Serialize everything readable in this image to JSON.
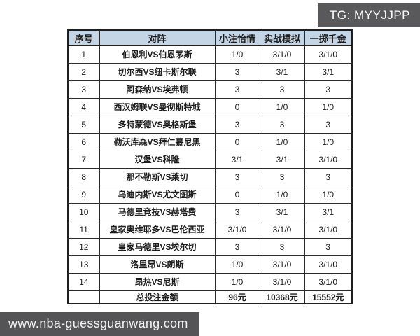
{
  "badge": {
    "text": "TG: MYYJJPP"
  },
  "watermark": {
    "text": "www.nba-guessguanwang.com"
  },
  "colors": {
    "header_bg": "#c4d6e6",
    "badge_bg": "#59595b",
    "watermark_bg": "#545456",
    "border": "#1f1f1f"
  },
  "table": {
    "headers": [
      "序号",
      "对阵",
      "小注怡情",
      "实战模拟",
      "一掷千金"
    ],
    "rows": [
      {
        "no": "1",
        "match": "伯恩利VS伯恩茅斯",
        "small": "1/0",
        "sim": "3/1/0",
        "big": "3/1/0"
      },
      {
        "no": "2",
        "match": "切尔西VS纽卡斯尔联",
        "small": "3",
        "sim": "3/1",
        "big": "3/1"
      },
      {
        "no": "3",
        "match": "阿森纳VS埃弗顿",
        "small": "3",
        "sim": "3",
        "big": "3"
      },
      {
        "no": "4",
        "match": "西汉姆联VS曼彻斯特城",
        "small": "0",
        "sim": "1/0",
        "big": "1/0"
      },
      {
        "no": "5",
        "match": "多特蒙德VS奥格斯堡",
        "small": "3",
        "sim": "3",
        "big": "3"
      },
      {
        "no": "6",
        "match": "勒沃库森VS拜仁慕尼黑",
        "small": "0",
        "sim": "1/0",
        "big": "1/0"
      },
      {
        "no": "7",
        "match": "汉堡VS科隆",
        "small": "3/1",
        "sim": "3/1",
        "big": "3/1/0"
      },
      {
        "no": "8",
        "match": "那不勒斯VS莱切",
        "small": "3",
        "sim": "3",
        "big": "3"
      },
      {
        "no": "9",
        "match": "乌迪内斯VS尤文图斯",
        "small": "0",
        "sim": "1/0",
        "big": "1/0"
      },
      {
        "no": "10",
        "match": "马德里竞技VS赫塔费",
        "small": "3",
        "sim": "3/1",
        "big": "3/1"
      },
      {
        "no": "11",
        "match": "皇家奥维耶多VS巴伦西亚",
        "small": "3/1/0",
        "sim": "3/1/0",
        "big": "3/1/0"
      },
      {
        "no": "12",
        "match": "皇家马德里VS埃尔切",
        "small": "3",
        "sim": "3",
        "big": "3"
      },
      {
        "no": "13",
        "match": "洛里昂VS朗斯",
        "small": "1/0",
        "sim": "3/1/0",
        "big": "3/1/0"
      },
      {
        "no": "14",
        "match": "昂热VS尼斯",
        "small": "1/0",
        "sim": "3/1/0",
        "big": "3/1/0"
      }
    ],
    "total": {
      "label": "总投注金额",
      "small": "96元",
      "sim": "10368元",
      "big": "15552元"
    }
  }
}
